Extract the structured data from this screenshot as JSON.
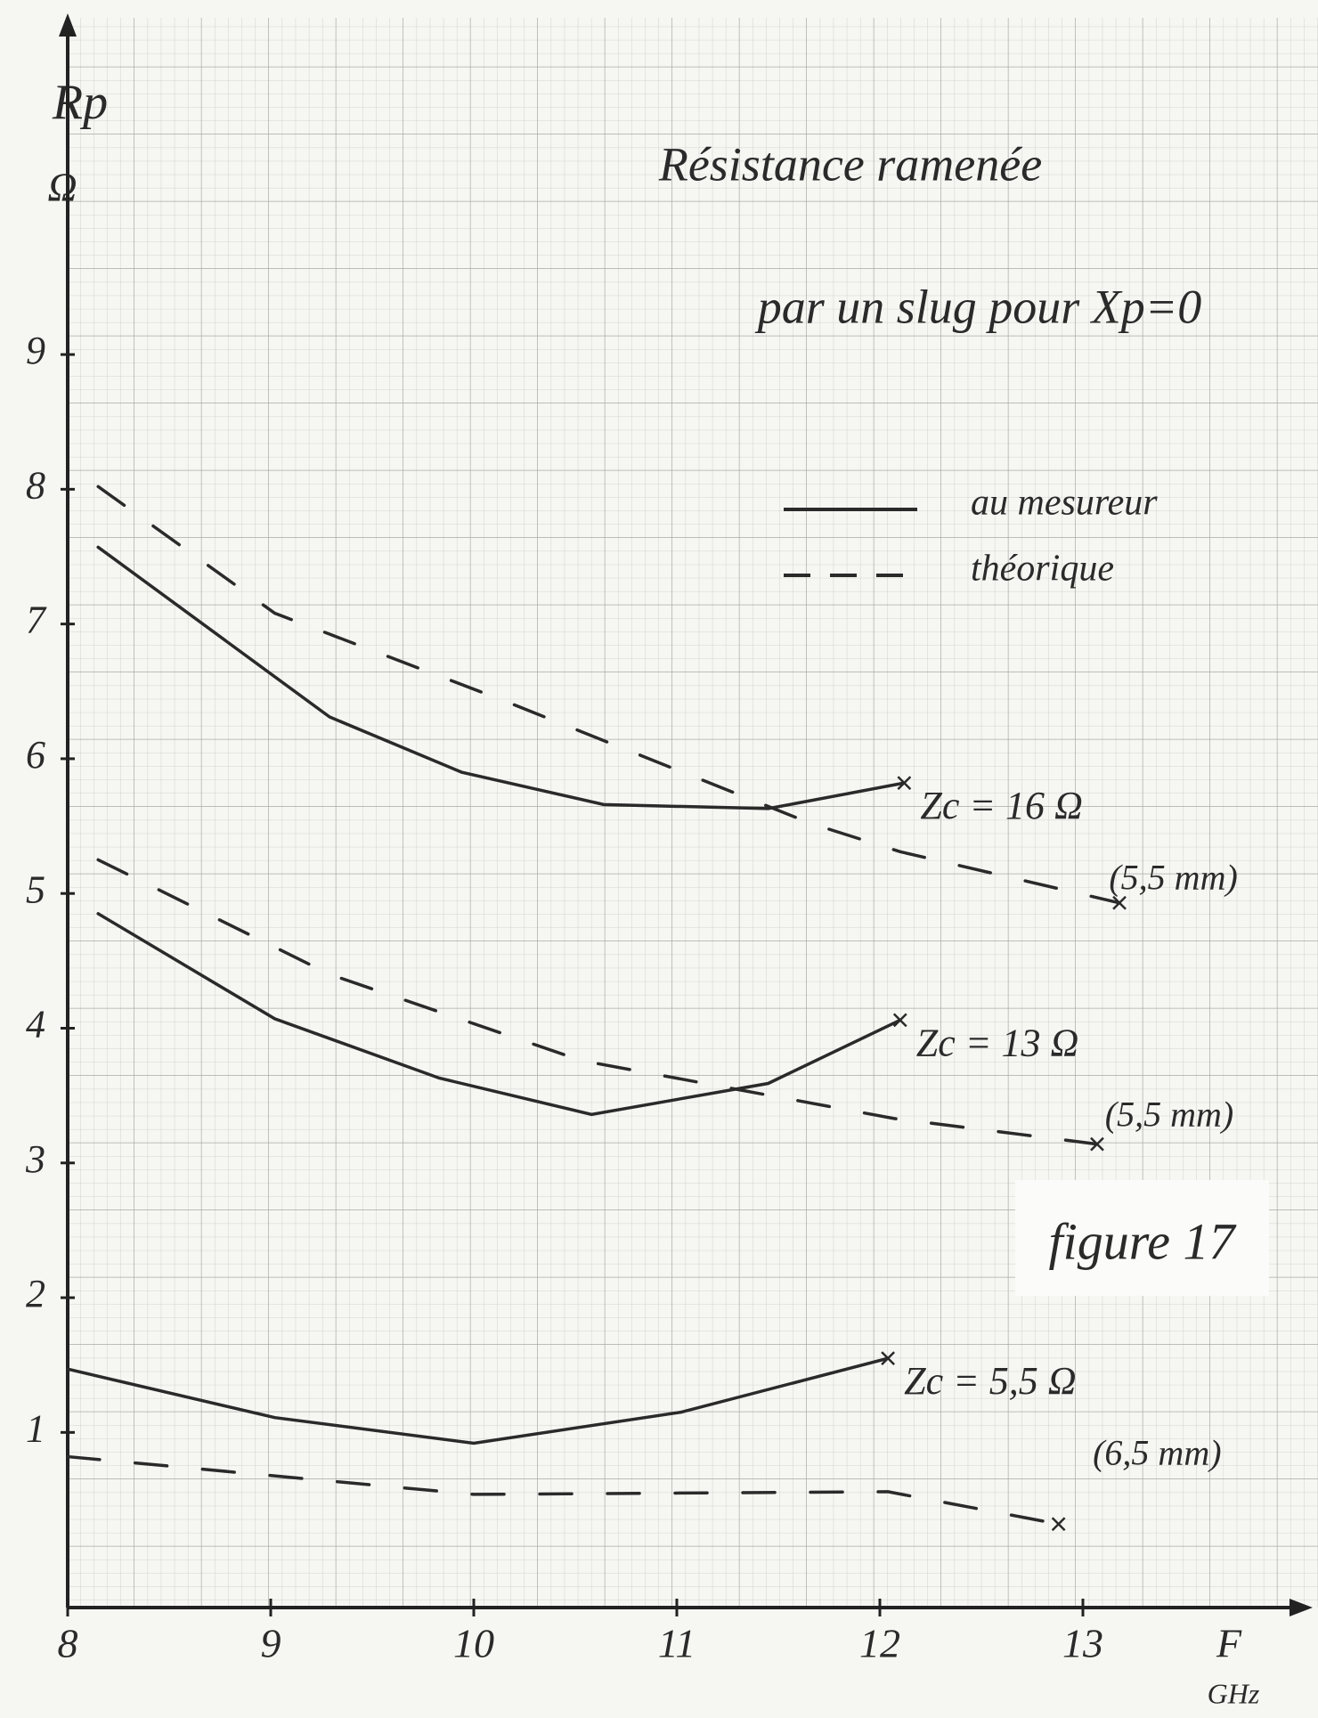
{
  "chart_data": {
    "type": "line",
    "title": "Résistance ramenée",
    "subtitle": "par un slug pour Xp=0",
    "y_label": "Rp",
    "y_unit": "Ω",
    "x_label": "F",
    "x_unit": "GHz",
    "figure_label": "figure 17",
    "xlim": [
      8,
      14
    ],
    "xticks": [
      8,
      9,
      10,
      11,
      12,
      13
    ],
    "ylim": [
      -0.3,
      11.4
    ],
    "yticks": [
      1,
      2,
      3,
      4,
      5,
      6,
      7,
      8,
      9
    ],
    "legend": [
      {
        "label": "au mesureur",
        "style": "solid"
      },
      {
        "label": "théorique",
        "style": "dashed"
      }
    ],
    "series": [
      {
        "style": "solid",
        "color": "#2a2a2a",
        "label": "Zc = 16 Ω",
        "sublabel": "(5,5 mm)",
        "x": [
          8.15,
          9.29,
          9.94,
          10.64,
          11.45,
          12.12
        ],
        "values": [
          7.57,
          6.31,
          5.9,
          5.66,
          5.63,
          5.82
        ]
      },
      {
        "style": "dashed",
        "color": "#2a2a2a",
        "x": [
          8.15,
          9.02,
          10.15,
          11.66,
          12.1,
          13.18
        ],
        "values": [
          8.02,
          7.08,
          6.43,
          5.52,
          5.31,
          4.93
        ]
      },
      {
        "style": "solid",
        "color": "#2a2a2a",
        "label": "Zc = 13 Ω",
        "sublabel": "(5,5 mm)",
        "x": [
          8.15,
          9.02,
          9.83,
          10.58,
          11.45,
          12.1
        ],
        "values": [
          4.85,
          4.07,
          3.63,
          3.36,
          3.59,
          4.06
        ]
      },
      {
        "style": "dashed",
        "color": "#2a2a2a",
        "x": [
          8.15,
          9.29,
          10.53,
          12.07,
          13.07
        ],
        "values": [
          5.25,
          4.4,
          3.76,
          3.33,
          3.14
        ]
      },
      {
        "style": "solid",
        "color": "#2a2a2a",
        "label": "Zc = 5,5 Ω",
        "sublabel": "(6,5 mm)",
        "x": [
          8,
          9.02,
          10,
          11.02,
          12.04
        ],
        "values": [
          1.47,
          1.11,
          0.92,
          1.15,
          1.55
        ]
      },
      {
        "style": "dashed",
        "color": "#2a2a2a",
        "x": [
          8,
          10,
          12.04,
          12.88
        ],
        "values": [
          0.82,
          0.54,
          0.56,
          0.32
        ]
      }
    ]
  }
}
